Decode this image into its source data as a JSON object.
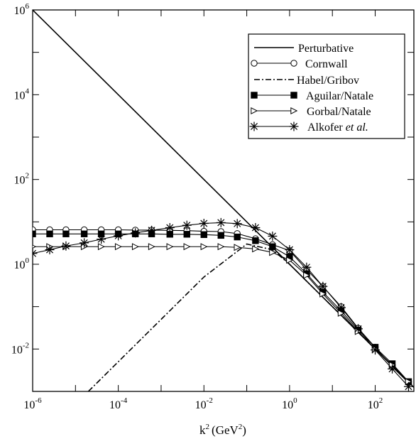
{
  "chart_data": {
    "type": "line",
    "title": "",
    "xlabel": {
      "base": "k",
      "exp": "2",
      "unit": "(GeV",
      "unit_exp": "2",
      "close": ")"
    },
    "ylabel": "",
    "x_scale": "log",
    "y_scale": "log",
    "xlim": [
      1e-06,
      800
    ],
    "ylim": [
      0.001,
      1000000
    ],
    "x_ticks": [
      {
        "value": 1e-06,
        "base": "10",
        "exp": "-6"
      },
      {
        "value": 0.0001,
        "base": "10",
        "exp": "-4"
      },
      {
        "value": 0.01,
        "base": "10",
        "exp": "-2"
      },
      {
        "value": 1,
        "base": "10",
        "exp": "0"
      },
      {
        "value": 100,
        "base": "10",
        "exp": "2"
      }
    ],
    "y_ticks": [
      {
        "value": 0.01,
        "base": "10",
        "exp": "-2"
      },
      {
        "value": 1,
        "base": "10",
        "exp": "0"
      },
      {
        "value": 100,
        "base": "10",
        "exp": "2"
      },
      {
        "value": 10000,
        "base": "10",
        "exp": "4"
      },
      {
        "value": 1000000,
        "base": "10",
        "exp": "6"
      }
    ],
    "grid": false,
    "legend_position": "top-right",
    "series": [
      {
        "name": "Perturbative",
        "style": "solid",
        "marker": "none",
        "points": [
          [
            1e-06,
            1000000
          ],
          [
            0.1,
            10
          ],
          [
            1,
            1
          ],
          [
            10,
            0.1
          ],
          [
            100,
            0.01
          ],
          [
            800,
            0.00125
          ]
        ]
      },
      {
        "name": "Cornwall",
        "style": "solid",
        "marker": "circle",
        "points": [
          [
            1e-06,
            6.5
          ],
          [
            2.5e-06,
            6.5
          ],
          [
            6e-06,
            6.5
          ],
          [
            1.6e-05,
            6.5
          ],
          [
            4e-05,
            6.5
          ],
          [
            0.0001,
            6.5
          ],
          [
            0.00025,
            6.4
          ],
          [
            0.0006,
            6.4
          ],
          [
            0.0016,
            6.3
          ],
          [
            0.004,
            6.2
          ],
          [
            0.01,
            6.0
          ],
          [
            0.025,
            5.9
          ],
          [
            0.06,
            5.3
          ],
          [
            0.16,
            4.0
          ],
          [
            0.4,
            2.9
          ],
          [
            1,
            2.1
          ],
          [
            2.5,
            0.75
          ],
          [
            6,
            0.3
          ],
          [
            16,
            0.1
          ],
          [
            40,
            0.031
          ],
          [
            100,
            0.011
          ],
          [
            250,
            0.0038
          ],
          [
            600,
            0.0016
          ]
        ]
      },
      {
        "name": "Habel/Gribov",
        "style": "dashdot",
        "marker": "none",
        "points": [
          [
            2e-05,
            0.001
          ],
          [
            0.0001,
            0.005
          ],
          [
            0.001,
            0.05
          ],
          [
            0.01,
            0.5
          ],
          [
            0.1,
            3.0
          ],
          [
            0.4,
            2.2
          ],
          [
            1,
            1.0
          ],
          [
            10,
            0.1
          ],
          [
            100,
            0.01
          ],
          [
            800,
            0.00125
          ]
        ]
      },
      {
        "name": "Aguilar/Natale",
        "style": "solid",
        "marker": "square",
        "points": [
          [
            1e-06,
            5.2
          ],
          [
            2.5e-06,
            5.2
          ],
          [
            6e-06,
            5.2
          ],
          [
            1.6e-05,
            5.2
          ],
          [
            4e-05,
            5.2
          ],
          [
            0.0001,
            5.2
          ],
          [
            0.00025,
            5.2
          ],
          [
            0.0006,
            5.2
          ],
          [
            0.0016,
            5.1
          ],
          [
            0.004,
            5.1
          ],
          [
            0.01,
            5.0
          ],
          [
            0.025,
            4.8
          ],
          [
            0.06,
            4.4
          ],
          [
            0.16,
            3.6
          ],
          [
            0.4,
            2.6
          ],
          [
            1,
            1.5
          ],
          [
            2.5,
            0.6
          ],
          [
            6,
            0.22
          ],
          [
            16,
            0.08
          ],
          [
            40,
            0.028
          ],
          [
            100,
            0.011
          ],
          [
            250,
            0.0045
          ],
          [
            600,
            0.0017
          ]
        ]
      },
      {
        "name": "Gorbal/Natale",
        "style": "solid",
        "marker": "triangle-right",
        "points": [
          [
            1e-06,
            2.6
          ],
          [
            2.5e-06,
            2.6
          ],
          [
            6e-06,
            2.6
          ],
          [
            1.6e-05,
            2.6
          ],
          [
            4e-05,
            2.6
          ],
          [
            0.0001,
            2.6
          ],
          [
            0.00025,
            2.6
          ],
          [
            0.0006,
            2.6
          ],
          [
            0.0016,
            2.6
          ],
          [
            0.004,
            2.6
          ],
          [
            0.01,
            2.6
          ],
          [
            0.025,
            2.6
          ],
          [
            0.06,
            2.5
          ],
          [
            0.16,
            2.3
          ],
          [
            0.4,
            1.9
          ],
          [
            1,
            1.25
          ],
          [
            2.5,
            0.55
          ],
          [
            6,
            0.2
          ],
          [
            16,
            0.07
          ],
          [
            40,
            0.026
          ],
          [
            100,
            0.01
          ],
          [
            250,
            0.0042
          ],
          [
            600,
            0.0017
          ]
        ]
      },
      {
        "name": "Alkofer et al.",
        "style": "solid",
        "marker": "asterisk",
        "points": [
          [
            1e-06,
            1.8
          ],
          [
            2.5e-06,
            2.2
          ],
          [
            6e-06,
            2.7
          ],
          [
            1.6e-05,
            3.2
          ],
          [
            4e-05,
            3.9
          ],
          [
            0.0001,
            4.7
          ],
          [
            0.00025,
            5.5
          ],
          [
            0.0006,
            6.3
          ],
          [
            0.0016,
            7.3
          ],
          [
            0.004,
            8.3
          ],
          [
            0.01,
            9.2
          ],
          [
            0.025,
            9.6
          ],
          [
            0.06,
            9.1
          ],
          [
            0.16,
            7.3
          ],
          [
            0.4,
            4.6
          ],
          [
            1,
            2.2
          ],
          [
            2.5,
            0.85
          ],
          [
            6,
            0.3
          ],
          [
            16,
            0.095
          ],
          [
            40,
            0.03
          ],
          [
            100,
            0.0095
          ],
          [
            250,
            0.0034
          ],
          [
            600,
            0.0013
          ]
        ]
      }
    ]
  },
  "legend": {
    "items": [
      {
        "label": "Perturbative"
      },
      {
        "label": "Cornwall"
      },
      {
        "label": "Habel/Gribov"
      },
      {
        "label": "Aguilar/Natale"
      },
      {
        "label": "Gorbal/Natale"
      },
      {
        "label": "Alkofer",
        "label_italic": "et al."
      }
    ]
  }
}
